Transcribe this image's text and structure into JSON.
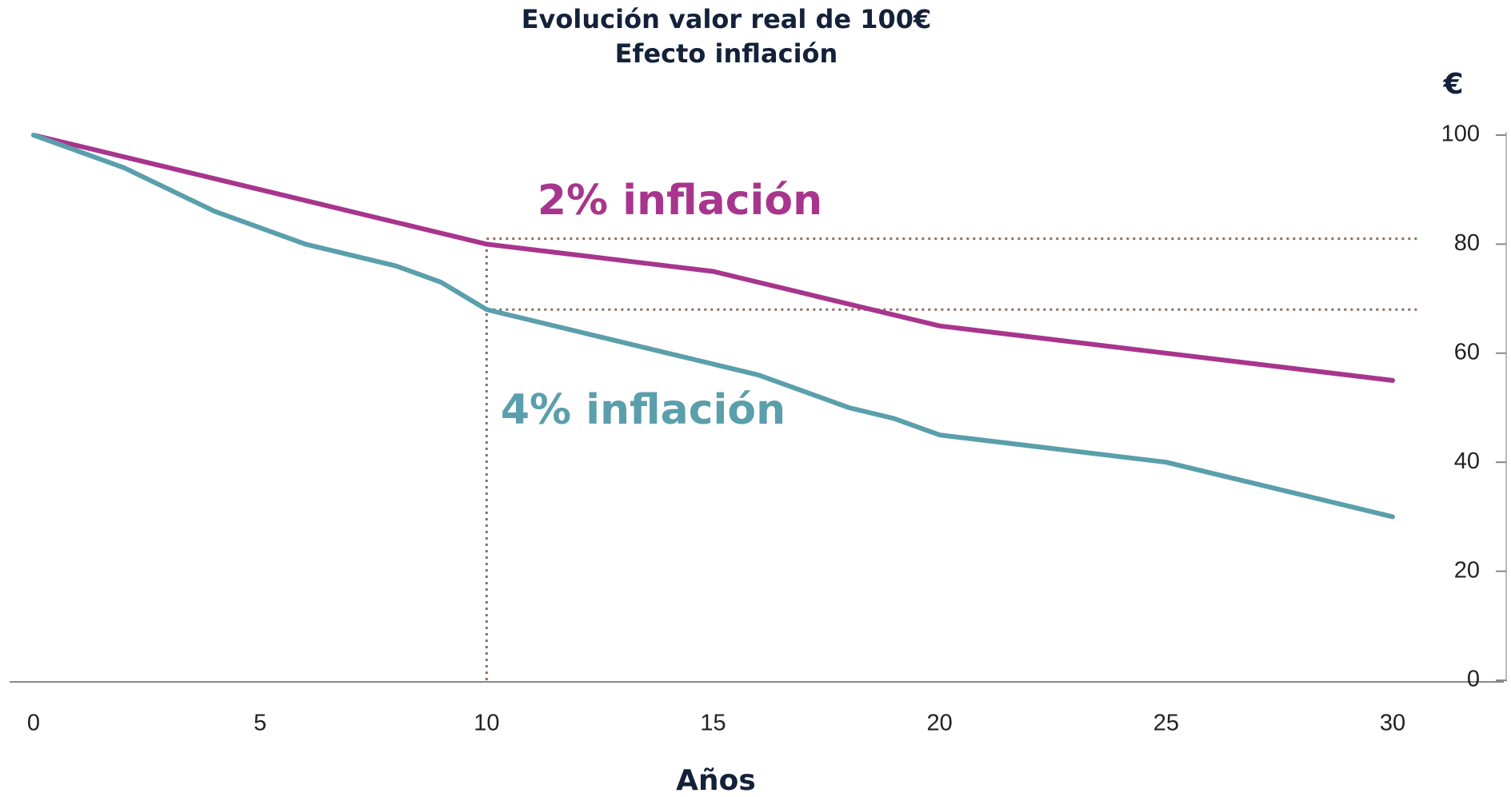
{
  "chart_data": {
    "type": "line",
    "title": "Evolución valor real de 100€",
    "subtitle": "Efecto inflación",
    "x_label": "Años",
    "y_label": "€",
    "x": [
      0,
      2,
      4,
      6,
      8,
      9,
      10,
      12,
      14,
      15,
      16,
      18,
      19,
      20,
      25,
      30
    ],
    "series": [
      {
        "name": "2% inflación",
        "color": "#a8358d",
        "values": [
          100,
          96,
          92,
          88,
          84,
          82,
          80,
          78,
          76,
          75,
          73,
          69,
          67,
          65,
          60,
          55
        ]
      },
      {
        "name": "4% inflación",
        "color": "#5a9fab",
        "values": [
          100,
          94,
          86,
          80,
          76,
          73,
          68,
          64,
          60,
          58,
          56,
          50,
          48,
          45,
          40,
          30
        ]
      }
    ],
    "guides": {
      "x": 10,
      "y": [
        81,
        68
      ],
      "color": "#8b6f5e"
    },
    "xlim": [
      0,
      30
    ],
    "xticks": [
      0,
      5,
      10,
      15,
      20,
      25,
      30
    ],
    "ylim": [
      0,
      100
    ],
    "yticks": [
      0,
      20,
      40,
      60,
      80,
      100
    ],
    "grid": false
  }
}
